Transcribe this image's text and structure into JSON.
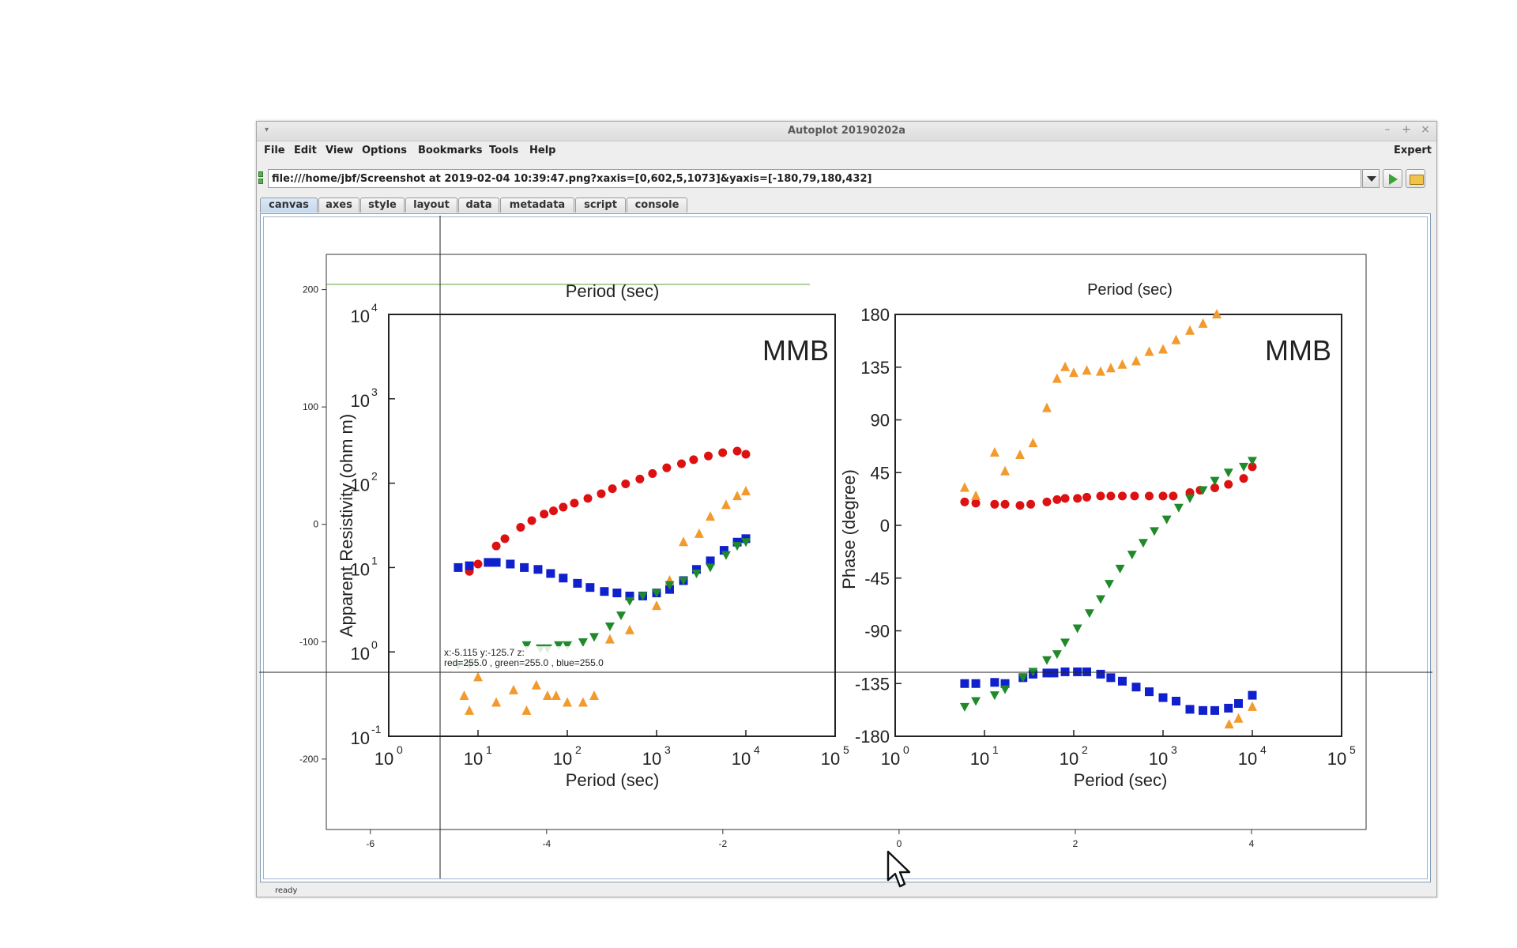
{
  "window": {
    "title": "Autoplot 20190202a",
    "controls": [
      "–",
      "+",
      "×"
    ]
  },
  "menu": {
    "items": [
      "File",
      "Edit",
      "View",
      "Options",
      "Bookmarks",
      "Tools",
      "Help"
    ],
    "expert": "Expert"
  },
  "url": {
    "value": "file:///home/jbf/Screenshot at 2019-02-04 10:39:47.png?xaxis=[0,602,5,1073]&yaxis=[-180,79,180,432]"
  },
  "tabs": [
    "canvas",
    "axes",
    "style",
    "layout",
    "data",
    "metadata",
    "script",
    "console"
  ],
  "active_tab": "canvas",
  "status": "ready",
  "plot": {
    "x_ticks": [
      "-6",
      "-4",
      "-2",
      "0",
      "2",
      "4"
    ],
    "y_ticks": [
      "200",
      "100",
      "0",
      "-100",
      "-200"
    ],
    "readout_line1": "x:-5.115  y:-125.7  z:",
    "readout_line2": "red=255.0 , green=255.0 , blue=255.0"
  },
  "image_panels": {
    "left": {
      "top_label": "Period (sec)",
      "station": "MMB",
      "ylabel": "Apparent Resistivity (ohm m)",
      "xlabel": "Period (sec)",
      "y_ticks": [
        "10",
        "10",
        "10",
        "10",
        "10",
        "10"
      ],
      "y_exps": [
        "4",
        "3",
        "2",
        "1",
        "0",
        "-1"
      ],
      "x_ticks": [
        "10",
        "10",
        "10",
        "10",
        "10",
        "10"
      ],
      "x_exps": [
        "0",
        "1",
        "2",
        "3",
        "4",
        "5"
      ]
    },
    "right": {
      "top_label": "Period (sec)",
      "station": "MMB",
      "ylabel": "Phase (degree)",
      "xlabel": "Period (sec)",
      "y_ticks": [
        "180",
        "135",
        "90",
        "45",
        "0",
        "-45",
        "-90",
        "-135",
        "-180"
      ],
      "x_ticks": [
        "10",
        "10",
        "10",
        "10",
        "10",
        "10"
      ],
      "x_exps": [
        "0",
        "1",
        "2",
        "3",
        "4",
        "5"
      ]
    }
  },
  "colors": {
    "red_series": "#dd1111",
    "blue_series": "#1020cc",
    "orange_series": "#f39a2e",
    "green_series": "#1f8a2a",
    "accent_green_line": "#7fb45f"
  },
  "chart_data": [
    {
      "type": "scatter",
      "title": "MMB",
      "xlabel": "Period (sec)",
      "ylabel": "Apparent Resistivity (ohm m)",
      "xscale": "log",
      "yscale": "log",
      "xlim": [
        1,
        100000
      ],
      "ylim": [
        0.1,
        10000
      ],
      "series": [
        {
          "color": "#dd1111",
          "x": [
            8,
            10,
            16,
            20,
            30,
            40,
            55,
            70,
            90,
            120,
            170,
            240,
            320,
            450,
            650,
            900,
            1300,
            1900,
            2600,
            3800,
            5500,
            8000,
            10000
          ],
          "y": [
            9,
            11,
            18,
            22,
            30,
            36,
            43,
            47,
            52,
            58,
            66,
            75,
            86,
            98,
            112,
            130,
            152,
            170,
            190,
            210,
            230,
            240,
            220
          ]
        },
        {
          "color": "#1020cc",
          "x": [
            6,
            8,
            13,
            16,
            23,
            33,
            47,
            65,
            90,
            130,
            180,
            260,
            360,
            500,
            700,
            1000,
            1400,
            2000,
            2800,
            4000,
            5700,
            8000,
            10000
          ],
          "y": [
            10,
            10.5,
            11.5,
            11.5,
            11,
            10,
            9.5,
            8.5,
            7.5,
            6.5,
            5.8,
            5.2,
            5,
            4.6,
            4.6,
            5,
            5.5,
            7,
            9.5,
            12,
            16,
            20,
            22
          ]
        },
        {
          "color": "#f39a2e",
          "x": [
            7,
            8,
            10,
            16,
            25,
            35,
            45,
            60,
            75,
            100,
            150,
            200,
            300,
            500,
            1000,
            1400,
            2000,
            3000,
            4000,
            6000,
            8000,
            10000
          ],
          "y": [
            0.3,
            0.2,
            0.5,
            0.25,
            0.35,
            0.2,
            0.4,
            0.3,
            0.3,
            0.25,
            0.25,
            0.3,
            1.4,
            1.8,
            3.5,
            7,
            20,
            25,
            40,
            55,
            70,
            80
          ]
        },
        {
          "color": "#1f8a2a",
          "x": [
            6,
            8,
            35,
            50,
            60,
            80,
            100,
            150,
            200,
            300,
            400,
            500,
            700,
            1000,
            1400,
            2000,
            2800,
            4000,
            6000,
            8000,
            10000
          ],
          "y": [
            0.7,
            0.7,
            1.2,
            1.1,
            1.1,
            1.2,
            1.2,
            1.3,
            1.5,
            2,
            2.7,
            4,
            4.6,
            5,
            6.2,
            7,
            8.5,
            10,
            14,
            18,
            20
          ]
        }
      ]
    },
    {
      "type": "scatter",
      "title": "MMB",
      "xlabel": "Period (sec)",
      "ylabel": "Phase (degree)",
      "xscale": "log",
      "xlim": [
        1,
        100000
      ],
      "ylim": [
        -180,
        180
      ],
      "series": [
        {
          "color": "#dd1111",
          "x": [
            6,
            8,
            13,
            17,
            25,
            33,
            50,
            65,
            80,
            110,
            140,
            200,
            260,
            350,
            480,
            700,
            1000,
            1300,
            2000,
            2600,
            3800,
            5400,
            8000,
            10000
          ],
          "y": [
            20,
            19,
            18,
            18,
            17,
            18,
            20,
            22,
            23,
            23,
            24,
            25,
            25,
            25,
            25,
            25,
            25,
            25,
            28,
            30,
            32,
            35,
            40,
            50
          ]
        },
        {
          "color": "#1020cc",
          "x": [
            6,
            8,
            13,
            17,
            27,
            35,
            50,
            60,
            80,
            110,
            140,
            200,
            260,
            350,
            500,
            700,
            1000,
            1400,
            2000,
            2800,
            3800,
            5400,
            7000,
            10000
          ],
          "y": [
            -135,
            -135,
            -134,
            -135,
            -130,
            -127,
            -126,
            -126,
            -125,
            -125,
            -125,
            -127,
            -130,
            -133,
            -138,
            -142,
            -147,
            -150,
            -157,
            -158,
            -158,
            -156,
            -152,
            -145
          ]
        },
        {
          "color": "#f39a2e",
          "x": [
            6,
            8,
            13,
            17,
            25,
            35,
            50,
            65,
            80,
            100,
            140,
            200,
            260,
            350,
            500,
            700,
            1000,
            1400,
            2000,
            2800,
            4000,
            5500,
            7000,
            10000
          ],
          "y": [
            32,
            25,
            62,
            46,
            60,
            70,
            100,
            125,
            135,
            130,
            132,
            131,
            134,
            137,
            140,
            148,
            150,
            158,
            166,
            172,
            180,
            -170,
            -165,
            -155
          ]
        },
        {
          "color": "#1f8a2a",
          "x": [
            6,
            8,
            13,
            17,
            27,
            35,
            50,
            65,
            80,
            110,
            150,
            200,
            250,
            330,
            450,
            600,
            800,
            1100,
            1500,
            2000,
            2800,
            3800,
            5400,
            8000,
            10000
          ],
          "y": [
            -155,
            -150,
            -145,
            -140,
            -130,
            -125,
            -115,
            -110,
            -100,
            -88,
            -75,
            -63,
            -50,
            -37,
            -25,
            -15,
            -5,
            5,
            15,
            23,
            30,
            38,
            45,
            50,
            55
          ]
        }
      ]
    }
  ]
}
